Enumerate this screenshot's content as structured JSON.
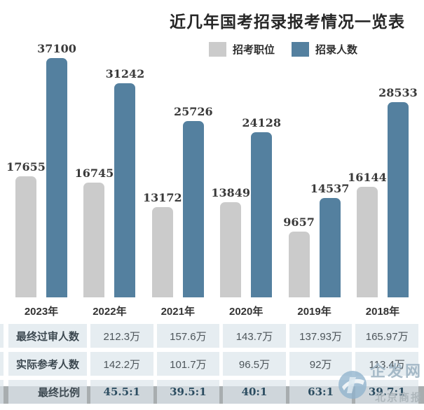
{
  "title": "近几年国考招录报考情况一览表",
  "legend": [
    {
      "label": "招考职位",
      "color": "#cbcbcb"
    },
    {
      "label": "招录人数",
      "color": "#54809f"
    }
  ],
  "chart_data": {
    "type": "bar",
    "title": "近几年国考招录报考情况一览表",
    "categories": [
      "2023年",
      "2022年",
      "2021年",
      "2020年",
      "2019年",
      "2018年"
    ],
    "series": [
      {
        "name": "招考职位",
        "color": "#cbcbcb",
        "values": [
          17655,
          16745,
          13172,
          13849,
          9657,
          16144
        ]
      },
      {
        "name": "招录人数",
        "color": "#54809f",
        "values": [
          37100,
          31242,
          25726,
          24128,
          14537,
          28533
        ]
      }
    ],
    "ylim": [
      0,
      37100
    ],
    "grid": false,
    "value_labels": true,
    "legend_position": "top-center",
    "xlabel": "",
    "ylabel": ""
  },
  "table": {
    "rows": [
      {
        "label": "最终过审人数",
        "values": [
          "212.3万",
          "157.6万",
          "143.7万",
          "137.93万",
          "165.97万"
        ],
        "highlight": false
      },
      {
        "label": "实际参考人数",
        "values": [
          "142.2万",
          "101.7万",
          "96.5万",
          "92万",
          "113.4万"
        ],
        "highlight": false
      },
      {
        "label": "最终比例",
        "values": [
          "45.5:1",
          "39.5:1",
          "40:1",
          "63:1",
          "39.7:1"
        ],
        "highlight": true
      }
    ]
  },
  "watermark": {
    "site": "企发网",
    "source": "北京商报"
  },
  "colors": {
    "bar_gray": "#cbcbcb",
    "bar_blue": "#54809f",
    "cell_bg": "#e4ebf0",
    "footer_band": "#a8adaf",
    "ratio_text": "#2b4c60"
  }
}
